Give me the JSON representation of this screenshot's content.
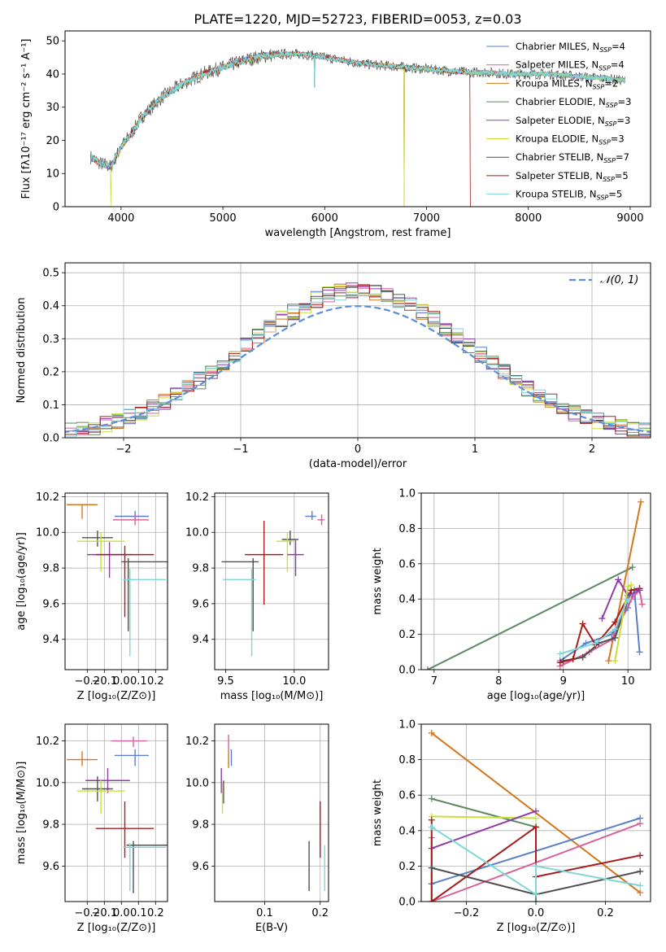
{
  "title": "PLATE=1220, MJD=52723, FIBERID=0053, z=0.03",
  "chart_data": [
    {
      "id": "spectrum",
      "type": "line",
      "xlabel": "wavelength [Angstrom, rest frame]",
      "ylabel": "Flux [fλ10⁻¹⁷ erg cm⁻² s⁻¹ A⁻¹]",
      "xlim": [
        3450,
        9200
      ],
      "ylim": [
        0,
        53
      ],
      "xticks": [
        4000,
        5000,
        6000,
        7000,
        8000,
        9000
      ],
      "yticks": [
        0,
        10,
        20,
        30,
        40,
        50
      ],
      "grid": false,
      "legend_position": "top-right",
      "continuum": {
        "x": [
          3700,
          3800,
          3900,
          4000,
          4100,
          4200,
          4300,
          4400,
          4500,
          4600,
          4700,
          4800,
          4900,
          5000,
          5200,
          5400,
          5600,
          5800,
          6000,
          6200,
          6400,
          6600,
          6800,
          7000,
          7200,
          7400,
          7600,
          7800,
          8000,
          8200,
          8400,
          8600,
          8800,
          8950
        ],
        "y": [
          15,
          13,
          12,
          18,
          22,
          27,
          30,
          33,
          35,
          37,
          38.5,
          40,
          41,
          42,
          44,
          45.5,
          46,
          46,
          45,
          44,
          43,
          42.5,
          42,
          41.5,
          41,
          40.5,
          40.5,
          40,
          40,
          40,
          39.5,
          39,
          38.5,
          38
        ]
      },
      "dropouts": [
        {
          "x": 3900,
          "min": 0
        },
        {
          "x": 5900,
          "min": 34
        },
        {
          "x": 6780,
          "min": 0
        },
        {
          "x": 7430,
          "min": 0
        }
      ],
      "series": [
        {
          "label": "Chabrier MILES, N",
          "sub": "SSP",
          "suffix": "=4",
          "color": "#5b7fc9"
        },
        {
          "label": "Salpeter MILES, N",
          "sub": "SSP",
          "suffix": "=4",
          "color": "#d9609c"
        },
        {
          "label": "Kroupa MILES, N",
          "sub": "SSP",
          "suffix": "=2",
          "color": "#d4761a"
        },
        {
          "label": "Chabrier ELODIE, N",
          "sub": "SSP",
          "suffix": "=3",
          "color": "#5b8a60"
        },
        {
          "label": "Salpeter ELODIE, N",
          "sub": "SSP",
          "suffix": "=3",
          "color": "#8e3da6"
        },
        {
          "label": "Kroupa ELODIE, N",
          "sub": "SSP",
          "suffix": "=3",
          "color": "#c6e03a"
        },
        {
          "label": "Chabrier STELIB, N",
          "sub": "SSP",
          "suffix": "=7",
          "color": "#505050"
        },
        {
          "label": "Salpeter STELIB, N",
          "sub": "SSP",
          "suffix": "=5",
          "color": "#a81c1c"
        },
        {
          "label": "Kroupa STELIB, N",
          "sub": "SSP",
          "suffix": "=5",
          "color": "#7fd6d9"
        }
      ]
    },
    {
      "id": "residuals",
      "type": "histogram",
      "xlabel": "(data-model)/error",
      "ylabel": "Normed distribution",
      "xlim": [
        -2.5,
        2.5
      ],
      "ylim": [
        0,
        0.53
      ],
      "xticks": [
        -2,
        -1,
        0,
        1,
        2
      ],
      "yticks": [
        0.0,
        0.1,
        0.2,
        0.3,
        0.4,
        0.5
      ],
      "grid": true,
      "bin_width": 0.1,
      "bin_start": -2.6,
      "reference_curve": {
        "label": "𝒩(0, 1)",
        "mean": 0,
        "sigma": 1,
        "style": "dashed",
        "color": "#5b8fd9"
      },
      "series_colors": [
        "#5b7fc9",
        "#d9609c",
        "#d4761a",
        "#5b8a60",
        "#8e3da6",
        "#c6e03a",
        "#505050",
        "#a81c1c",
        "#7fd6d9"
      ]
    },
    {
      "id": "age-vs-Z",
      "type": "errorbar",
      "xlabel": "Z [log₁₀(Z/Z⊙)]",
      "ylabel": "age  [log₁₀(age/yr)]",
      "xlim": [
        -0.33,
        0.27
      ],
      "ylim": [
        9.23,
        10.22
      ],
      "xticks": [
        -0.2,
        -0.1,
        0.0,
        0.1,
        0.2
      ],
      "xticklabels": [
        "−0.2",
        "−0.1",
        "0.0",
        "0.1",
        "0.2"
      ],
      "yticks": [
        9.4,
        9.6,
        9.8,
        10.0,
        10.2
      ],
      "grid": true,
      "points": [
        {
          "x": -0.23,
          "y": 10.155,
          "xerr": [
            0.09,
            0.09
          ],
          "yerr": [
            0.08,
            0.0
          ],
          "color": "#d4761a"
        },
        {
          "x": 0.08,
          "y": 10.09,
          "xerr": [
            0.12,
            0.08
          ],
          "yerr": [
            0.02,
            0.03
          ],
          "color": "#5b7fc9"
        },
        {
          "x": 0.08,
          "y": 10.07,
          "xerr": [
            0.13,
            0.08
          ],
          "yerr": [
            0.03,
            0.03
          ],
          "color": "#d9609c"
        },
        {
          "x": -0.14,
          "y": 9.97,
          "xerr": [
            0.09,
            0.09
          ],
          "yerr": [
            0.05,
            0.04
          ],
          "color": "#505050"
        },
        {
          "x": -0.12,
          "y": 9.95,
          "xerr": [
            0.14,
            0.14
          ],
          "yerr": [
            0.17,
            0.05
          ],
          "color": "#c6e03a"
        },
        {
          "x": -0.07,
          "y": 9.875,
          "xerr": [
            0.13,
            0.13
          ],
          "yerr": [
            0.13,
            0.07
          ],
          "color": "#8e3da6"
        },
        {
          "x": 0.02,
          "y": 9.875,
          "xerr": [
            0.17,
            0.17
          ],
          "yerr": [
            0.35,
            0.05
          ],
          "color": "#a81c1c"
        },
        {
          "x": 0.04,
          "y": 9.835,
          "xerr": [
            0.04,
            0.23
          ],
          "yerr": [
            0.39,
            0.02
          ],
          "color": "#505050"
        },
        {
          "x": 0.05,
          "y": 9.735,
          "xerr": [
            0.04,
            0.21
          ],
          "yerr": [
            0.43,
            0.06
          ],
          "color": "#7fd6d9"
        }
      ]
    },
    {
      "id": "age-vs-mass",
      "type": "errorbar",
      "xlabel": "mass [log₁₀(M/M⊙)]",
      "xlim": [
        9.42,
        10.25
      ],
      "ylim": [
        9.23,
        10.22
      ],
      "xticks": [
        9.5,
        10.0
      ],
      "xticklabels": [
        "9.5",
        "10.0"
      ],
      "yticks": [
        9.4,
        9.6,
        9.8,
        10.0,
        10.2
      ],
      "grid": true,
      "points": [
        {
          "x": 10.13,
          "y": 10.09,
          "xerr": [
            0.05,
            0.03
          ],
          "yerr": [
            0.02,
            0.03
          ],
          "color": "#5b7fc9"
        },
        {
          "x": 10.2,
          "y": 10.07,
          "xerr": [
            0.03,
            0.02
          ],
          "yerr": [
            0.03,
            0.03
          ],
          "color": "#d9609c"
        },
        {
          "x": 9.97,
          "y": 9.96,
          "xerr": [
            0.06,
            0.06
          ],
          "yerr": [
            0.03,
            0.05
          ],
          "color": "#505050"
        },
        {
          "x": 9.95,
          "y": 9.95,
          "xerr": [
            0.08,
            0.05
          ],
          "yerr": [
            0.17,
            0.05
          ],
          "color": "#c6e03a"
        },
        {
          "x": 10.01,
          "y": 9.875,
          "xerr": [
            0.06,
            0.06
          ],
          "yerr": [
            0.12,
            0.08
          ],
          "color": "#8e3da6"
        },
        {
          "x": 9.78,
          "y": 9.875,
          "xerr": [
            0.14,
            0.14
          ],
          "yerr": [
            0.28,
            0.19
          ],
          "color": "#a81c1c"
        },
        {
          "x": 9.7,
          "y": 9.835,
          "xerr": [
            0.23,
            0.04
          ],
          "yerr": [
            0.39,
            0.02
          ],
          "color": "#505050"
        },
        {
          "x": 9.69,
          "y": 9.735,
          "xerr": [
            0.21,
            0.03
          ],
          "yerr": [
            0.43,
            0.06
          ],
          "color": "#7fd6d9"
        }
      ]
    },
    {
      "id": "mass-weight-vs-age",
      "type": "line",
      "xlabel": "age  [log₁₀(age/yr)]",
      "ylabel": "mass weight",
      "xlim": [
        6.8,
        10.35
      ],
      "ylim": [
        0,
        1.0
      ],
      "xticks": [
        7,
        8,
        9,
        10
      ],
      "yticks": [
        0.0,
        0.2,
        0.4,
        0.6,
        0.8,
        1.0
      ],
      "grid": true,
      "series": [
        {
          "color": "#5b8a60",
          "x": [
            6.9,
            10.07
          ],
          "y": [
            0.0,
            0.58
          ]
        },
        {
          "color": "#d4761a",
          "x": [
            9.7,
            10.2
          ],
          "y": [
            0.05,
            0.95
          ]
        },
        {
          "color": "#5b7fc9",
          "x": [
            8.95,
            9.35,
            9.75,
            10.0,
            10.1,
            10.18
          ],
          "y": [
            0.05,
            0.15,
            0.2,
            0.35,
            0.45,
            0.1
          ]
        },
        {
          "color": "#d9609c",
          "x": [
            8.95,
            9.4,
            9.75,
            10.05,
            10.18,
            10.22
          ],
          "y": [
            0.02,
            0.1,
            0.17,
            0.4,
            0.45,
            0.37
          ]
        },
        {
          "color": "#505050",
          "x": [
            9.0,
            9.3,
            9.55,
            9.8,
            10.05,
            10.18
          ],
          "y": [
            0.05,
            0.07,
            0.15,
            0.18,
            0.45,
            0.46
          ]
        },
        {
          "color": "#a81c1c",
          "x": [
            8.95,
            9.15,
            9.3,
            9.5,
            9.8,
            10.05,
            10.18
          ],
          "y": [
            0.04,
            0.06,
            0.26,
            0.14,
            0.27,
            0.45,
            0.46
          ]
        },
        {
          "color": "#8e3da6",
          "x": [
            9.6,
            9.85,
            10.0,
            10.18
          ],
          "y": [
            0.29,
            0.51,
            0.42,
            0.45
          ]
        },
        {
          "color": "#c6e03a",
          "x": [
            9.8,
            10.0,
            10.05
          ],
          "y": [
            0.05,
            0.47,
            0.48
          ]
        },
        {
          "color": "#7fd6d9",
          "x": [
            8.95,
            9.5,
            9.8,
            10.0
          ],
          "y": [
            0.09,
            0.15,
            0.23,
            0.4
          ]
        }
      ]
    },
    {
      "id": "mass-vs-Z",
      "type": "errorbar",
      "xlabel": "Z [log₁₀(Z/Z⊙)]",
      "ylabel": "mass [log₁₀(M/M⊙)]",
      "xlim": [
        -0.33,
        0.27
      ],
      "ylim": [
        9.43,
        10.28
      ],
      "xticks": [
        -0.2,
        -0.1,
        0.0,
        0.1,
        0.2
      ],
      "xticklabels": [
        "−0.2",
        "−0.1",
        "0.0",
        "0.1",
        "0.2"
      ],
      "yticks": [
        9.6,
        9.8,
        10.0,
        10.2
      ],
      "grid": true,
      "points": [
        {
          "x": 0.07,
          "y": 10.2,
          "xerr": [
            0.13,
            0.08
          ],
          "yerr": [
            0.03,
            0.02
          ],
          "color": "#d9609c"
        },
        {
          "x": 0.08,
          "y": 10.13,
          "xerr": [
            0.12,
            0.08
          ],
          "yerr": [
            0.05,
            0.03
          ],
          "color": "#5b7fc9"
        },
        {
          "x": -0.23,
          "y": 10.11,
          "xerr": [
            0.09,
            0.09
          ],
          "yerr": [
            0.03,
            0.04
          ],
          "color": "#d4761a"
        },
        {
          "x": -0.08,
          "y": 10.01,
          "xerr": [
            0.13,
            0.13
          ],
          "yerr": [
            0.06,
            0.06
          ],
          "color": "#8e3da6"
        },
        {
          "x": -0.14,
          "y": 9.97,
          "xerr": [
            0.09,
            0.09
          ],
          "yerr": [
            0.06,
            0.06
          ],
          "color": "#505050"
        },
        {
          "x": -0.12,
          "y": 9.96,
          "xerr": [
            0.14,
            0.14
          ],
          "yerr": [
            0.11,
            0.05
          ],
          "color": "#c6e03a"
        },
        {
          "x": 0.02,
          "y": 9.78,
          "xerr": [
            0.17,
            0.17
          ],
          "yerr": [
            0.14,
            0.13
          ],
          "color": "#a81c1c"
        },
        {
          "x": 0.07,
          "y": 9.7,
          "xerr": [
            0.04,
            0.2
          ],
          "yerr": [
            0.23,
            0.02
          ],
          "color": "#505050"
        },
        {
          "x": 0.05,
          "y": 9.69,
          "xerr": [
            0.04,
            0.21
          ],
          "yerr": [
            0.21,
            0.02
          ],
          "color": "#7fd6d9"
        }
      ]
    },
    {
      "id": "mass-vs-ebv",
      "type": "errorbar",
      "xlabel": "E(B-V)",
      "xlim": [
        0.01,
        0.215
      ],
      "ylim": [
        9.43,
        10.28
      ],
      "xticks": [
        0.1,
        0.2
      ],
      "xticklabels": [
        "0.1",
        "0.2"
      ],
      "yticks": [
        9.6,
        9.8,
        10.0,
        10.2
      ],
      "grid": true,
      "points": [
        {
          "x": 0.035,
          "y": 10.19,
          "xerr": [
            0,
            0
          ],
          "yerr": [
            0.04,
            0.04
          ],
          "color": "#d9609c"
        },
        {
          "x": 0.04,
          "y": 10.13,
          "xerr": [
            0,
            0
          ],
          "yerr": [
            0.05,
            0.03
          ],
          "color": "#5b7fc9"
        },
        {
          "x": 0.035,
          "y": 10.11,
          "xerr": [
            0,
            0
          ],
          "yerr": [
            0.04,
            0.04
          ],
          "color": "#d4761a"
        },
        {
          "x": 0.022,
          "y": 10.01,
          "xerr": [
            0,
            0
          ],
          "yerr": [
            0.06,
            0.06
          ],
          "color": "#8e3da6"
        },
        {
          "x": 0.026,
          "y": 9.97,
          "xerr": [
            0,
            0
          ],
          "yerr": [
            0.07,
            0.04
          ],
          "color": "#505050"
        },
        {
          "x": 0.024,
          "y": 9.96,
          "xerr": [
            0,
            0
          ],
          "yerr": [
            0.11,
            0.04
          ],
          "color": "#c6e03a"
        },
        {
          "x": 0.2,
          "y": 9.78,
          "xerr": [
            0,
            0
          ],
          "yerr": [
            0.14,
            0.13
          ],
          "color": "#a81c1c"
        },
        {
          "x": 0.18,
          "y": 9.62,
          "xerr": [
            0,
            0
          ],
          "yerr": [
            0.14,
            0.1
          ],
          "color": "#505050"
        },
        {
          "x": 0.208,
          "y": 9.6,
          "xerr": [
            0,
            0
          ],
          "yerr": [
            0.12,
            0.1
          ],
          "color": "#7fd6d9"
        }
      ]
    },
    {
      "id": "mass-weight-vs-Z",
      "type": "line",
      "xlabel": "Z [log₁₀(Z/Z⊙)]",
      "ylabel": "mass weight",
      "xlim": [
        -0.33,
        0.33
      ],
      "ylim": [
        0,
        1.0
      ],
      "xticks": [
        -0.2,
        0.0,
        0.2
      ],
      "xticklabels": [
        "−0.2",
        "0.0",
        "0.2"
      ],
      "yticks": [
        0.0,
        0.2,
        0.4,
        0.6,
        0.8,
        1.0
      ],
      "grid": true,
      "series": [
        {
          "color": "#d4761a",
          "x": [
            -0.3,
            0.3
          ],
          "y": [
            0.95,
            0.05
          ]
        },
        {
          "color": "#5b8a60",
          "x": [
            -0.3,
            0.0,
            0.0
          ],
          "y": [
            0.58,
            0.42,
            0.0
          ]
        },
        {
          "color": "#c6e03a",
          "x": [
            -0.3,
            0.0
          ],
          "y": [
            0.48,
            0.47
          ]
        },
        {
          "color": "#8e3da6",
          "x": [
            -0.3,
            0.0
          ],
          "y": [
            0.3,
            0.51
          ]
        },
        {
          "color": "#5b7fc9",
          "x": [
            -0.3,
            0.3
          ],
          "y": [
            0.1,
            0.47
          ]
        },
        {
          "color": "#d9609c",
          "x": [
            -0.3,
            -0.3,
            0.3
          ],
          "y": [
            0.36,
            0.0,
            0.44
          ]
        },
        {
          "color": "#a81c1c",
          "x": [
            -0.3,
            -0.3,
            0.0,
            0.0,
            0.3
          ],
          "y": [
            0.46,
            0.0,
            0.42,
            0.14,
            0.26
          ]
        },
        {
          "color": "#505050",
          "x": [
            -0.3,
            0.0,
            0.3
          ],
          "y": [
            0.19,
            0.04,
            0.17
          ]
        },
        {
          "color": "#7fd6d9",
          "x": [
            -0.3,
            0.0,
            0.0,
            0.3
          ],
          "y": [
            0.42,
            0.04,
            0.2,
            0.09
          ]
        }
      ]
    }
  ]
}
